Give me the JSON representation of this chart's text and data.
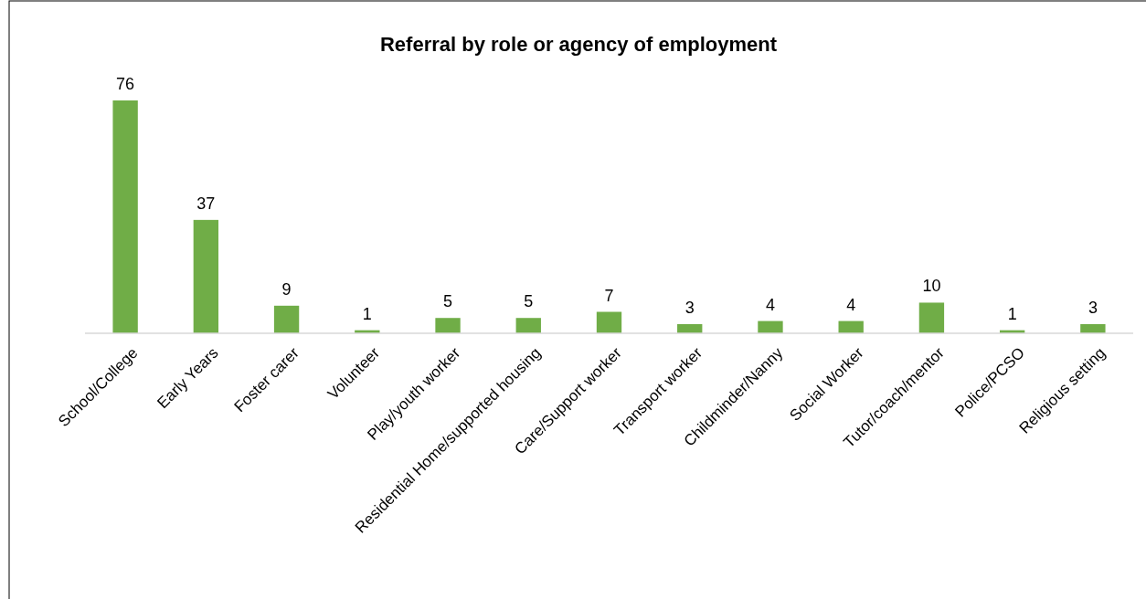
{
  "chart_data": {
    "type": "bar",
    "title": "Referral by role or agency of employment",
    "categories": [
      "School/College",
      "Early Years",
      "Foster carer",
      "Volunteer",
      "Play/youth worker",
      "Residential Home/supported housing",
      "Care/Support worker",
      "Transport worker",
      "Childminder/Nanny",
      "Social Worker",
      "Tutor/coach/mentor",
      "Police/PCSO",
      "Religious setting"
    ],
    "values": [
      76,
      37,
      9,
      1,
      5,
      5,
      7,
      3,
      4,
      4,
      10,
      1,
      3
    ],
    "color": "#70ad47",
    "data_labels": true
  }
}
